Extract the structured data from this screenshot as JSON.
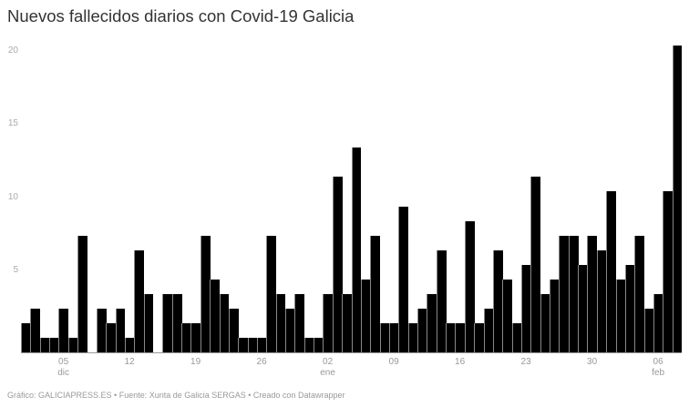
{
  "title": "Nuevos fallecidos diarios con Covid-19 Galicia",
  "footer": "Gráfico: GALICIAPRESS.ES • Fuente: Xunta de Galicia SERGAS • Creado con Datawrapper",
  "colors": {
    "bar": "#000000",
    "axis_text": "#999999",
    "title": "#333333"
  },
  "chart_data": {
    "type": "bar",
    "title": "Nuevos fallecidos diarios con Covid-19 Galicia",
    "xlabel": "",
    "ylabel": "",
    "ylim": [
      0,
      21
    ],
    "y_ticks": [
      5,
      10,
      15,
      20
    ],
    "grid": false,
    "legend": "none",
    "x_tick_labels": [
      {
        "index": 4,
        "label": "05",
        "sublabel": "dic"
      },
      {
        "index": 11,
        "label": "12",
        "sublabel": ""
      },
      {
        "index": 18,
        "label": "19",
        "sublabel": ""
      },
      {
        "index": 25,
        "label": "26",
        "sublabel": ""
      },
      {
        "index": 32,
        "label": "02",
        "sublabel": "ene"
      },
      {
        "index": 39,
        "label": "09",
        "sublabel": ""
      },
      {
        "index": 46,
        "label": "16",
        "sublabel": ""
      },
      {
        "index": 53,
        "label": "23",
        "sublabel": ""
      },
      {
        "index": 60,
        "label": "30",
        "sublabel": ""
      },
      {
        "index": 67,
        "label": "06",
        "sublabel": "feb"
      }
    ],
    "categories": [
      "01 dic",
      "02 dic",
      "03 dic",
      "04 dic",
      "05 dic",
      "06 dic",
      "07 dic",
      "08 dic",
      "09 dic",
      "10 dic",
      "11 dic",
      "12 dic",
      "13 dic",
      "14 dic",
      "15 dic",
      "16 dic",
      "17 dic",
      "18 dic",
      "19 dic",
      "20 dic",
      "21 dic",
      "22 dic",
      "23 dic",
      "24 dic",
      "25 dic",
      "26 dic",
      "27 dic",
      "28 dic",
      "29 dic",
      "30 dic",
      "31 dic",
      "01 ene",
      "02 ene",
      "03 ene",
      "04 ene",
      "05 ene",
      "06 ene",
      "07 ene",
      "08 ene",
      "09 ene",
      "10 ene",
      "11 ene",
      "12 ene",
      "13 ene",
      "14 ene",
      "15 ene",
      "16 ene",
      "17 ene",
      "18 ene",
      "19 ene",
      "20 ene",
      "21 ene",
      "22 ene",
      "23 ene",
      "24 ene",
      "25 ene",
      "26 ene",
      "27 ene",
      "28 ene",
      "29 ene",
      "30 ene",
      "31 ene",
      "01 feb",
      "02 feb",
      "03 feb",
      "04 feb",
      "05 feb",
      "06 feb",
      "07 feb",
      "08 feb"
    ],
    "values": [
      2,
      3,
      1,
      1,
      3,
      1,
      8,
      0,
      3,
      2,
      3,
      1,
      7,
      4,
      0,
      4,
      4,
      2,
      2,
      8,
      5,
      4,
      3,
      1,
      1,
      1,
      8,
      4,
      3,
      4,
      1,
      1,
      4,
      12,
      4,
      14,
      5,
      8,
      2,
      2,
      10,
      2,
      3,
      4,
      7,
      2,
      2,
      9,
      2,
      3,
      7,
      5,
      2,
      6,
      12,
      4,
      5,
      8,
      8,
      6,
      8,
      7,
      11,
      5,
      6,
      8,
      3,
      4,
      11,
      21
    ]
  }
}
